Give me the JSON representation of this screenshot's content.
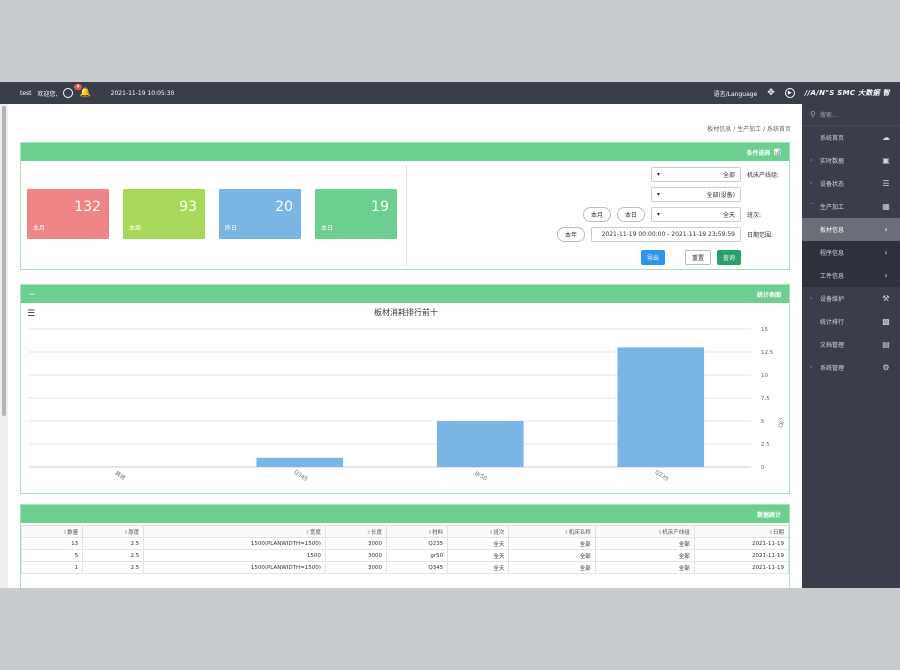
{
  "header": {
    "brand": "//A/N\"S SMC 大数据 智",
    "language": "语言/Language",
    "datetime": "2021-11-19 10:05:30",
    "badge": "4",
    "welcome": "欢迎您,",
    "user": "test"
  },
  "sidebar": {
    "search_placeholder": "搜索...",
    "items": [
      {
        "label": "系统首页",
        "icon": "cloud-icon"
      },
      {
        "label": "实时数据",
        "icon": "monitor-icon"
      },
      {
        "label": "设备状态",
        "icon": "list-icon"
      },
      {
        "label": "生产加工",
        "icon": "table-icon"
      },
      {
        "label": "板材信息",
        "icon": ""
      },
      {
        "label": "程序信息",
        "icon": ""
      },
      {
        "label": "工件信息",
        "icon": ""
      },
      {
        "label": "设备维护",
        "icon": "wrench-icon"
      },
      {
        "label": "统计排行",
        "icon": "bar-chart-icon"
      },
      {
        "label": "文档管理",
        "icon": "document-icon"
      },
      {
        "label": "系统管理",
        "icon": "gear-icon"
      }
    ]
  },
  "breadcrumb": [
    "系统首页",
    "生产加工",
    "板材信息"
  ],
  "filter_panel": {
    "title": "条件选择",
    "kpis": [
      {
        "label": "本日",
        "value": "19",
        "color": "#6ccf8f"
      },
      {
        "label": "昨日",
        "value": "20",
        "color": "#7bb5e6"
      },
      {
        "label": "本周",
        "value": "93",
        "color": "#a8d85a"
      },
      {
        "label": "本月",
        "value": "132",
        "color": "#ef8587"
      }
    ],
    "line_label": "机床产线组:",
    "line_value": "全部",
    "device_value": "全部(设备)",
    "shift_label": "班次:",
    "shift_value": "全天",
    "today_btn": "本日",
    "month_btn": "本月",
    "year_btn": "本年",
    "date_label": "日期范围:",
    "date_range": "2021-11-19 00:00:00 - 2021-11-19 23:59:59",
    "query_btn": "查询",
    "reset_btn": "重置",
    "export_btn": "导出"
  },
  "stats_panel": {
    "title": "统计表图",
    "collapse": "—"
  },
  "chart_data": {
    "type": "bar",
    "title": "板材消耗排行前十",
    "categories": [
      "Q235",
      "gr50",
      "Q345",
      "其他"
    ],
    "values": [
      13,
      5,
      1,
      0
    ],
    "ylabel": "(次)",
    "ylim": [
      0,
      15
    ],
    "yticks": [
      "0",
      "2.5",
      "5",
      "7.5",
      "10",
      "12.5",
      "15"
    ],
    "bar_color": "#7bb5e6"
  },
  "table_panel": {
    "title": "数据统计",
    "columns": [
      "日期",
      "机床产线组",
      "机床名称",
      "班次",
      "材料",
      "长度",
      "宽度",
      "厚度",
      "数量"
    ],
    "rows": [
      [
        "2021-11-19",
        "全部",
        "全部",
        "全天",
        "Q235",
        "3000",
        "1500(PLANWIDTH=1500)",
        "2.5",
        "13"
      ],
      [
        "2021-11-19",
        "全部",
        "全部",
        "全天",
        "gr50",
        "3000",
        "1500",
        "2.5",
        "5"
      ],
      [
        "2021-11-19",
        "全部",
        "全部",
        "全天",
        "Q345",
        "3000",
        "1500(PLANWIDTH=1500)",
        "2.5",
        "1"
      ]
    ]
  }
}
